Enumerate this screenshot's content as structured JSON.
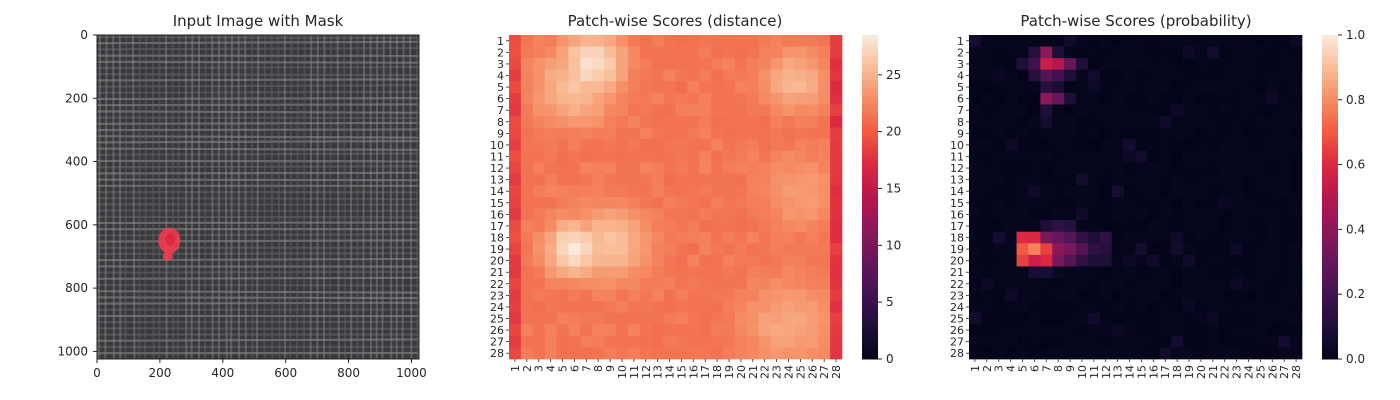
{
  "chart_data": [
    {
      "type": "image",
      "title": "Input Image with Mask",
      "xlim": [
        0,
        1024
      ],
      "ylim": [
        1024,
        0
      ],
      "xticks": [
        0,
        200,
        400,
        600,
        800,
        1000
      ],
      "yticks": [
        0,
        200,
        400,
        600,
        800,
        1000
      ],
      "texture_colors": [
        "#3e3e42",
        "#6d6d71",
        "#9a9a9e"
      ],
      "mask_color": "#ff3b4e",
      "mask_region": {
        "x_range": [
          195,
          265
        ],
        "y_range": [
          610,
          720
        ]
      }
    },
    {
      "type": "heatmap",
      "title": "Patch-wise Scores (distance)",
      "rows": 28,
      "cols": 28,
      "row_labels": [
        "1",
        "2",
        "3",
        "4",
        "5",
        "6",
        "7",
        "8",
        "9",
        "10",
        "11",
        "12",
        "13",
        "14",
        "15",
        "16",
        "17",
        "18",
        "19",
        "20",
        "21",
        "22",
        "23",
        "24",
        "25",
        "26",
        "27",
        "28"
      ],
      "col_labels": [
        "1",
        "2",
        "3",
        "4",
        "5",
        "6",
        "7",
        "8",
        "9",
        "10",
        "11",
        "12",
        "13",
        "14",
        "15",
        "16",
        "17",
        "18",
        "19",
        "20",
        "21",
        "22",
        "23",
        "24",
        "25",
        "26",
        "27",
        "28"
      ],
      "colorbar": {
        "min": 0,
        "max": 28.5,
        "ticks": [
          0,
          5,
          10,
          15,
          20,
          25
        ]
      },
      "base_value": 21,
      "hotspots": [
        {
          "row": 3,
          "col": 7.5,
          "peak": 28,
          "spread": 2.0
        },
        {
          "row": 5,
          "col": 6,
          "peak": 26,
          "spread": 2.5
        },
        {
          "row": 19,
          "col": 6,
          "peak": 28.5,
          "spread": 1.8
        },
        {
          "row": 18.5,
          "col": 9,
          "peak": 26,
          "spread": 2.5
        },
        {
          "row": 4.5,
          "col": 24.5,
          "peak": 25.5,
          "spread": 2.0
        },
        {
          "row": 25.5,
          "col": 24,
          "peak": 24.5,
          "spread": 3.0
        },
        {
          "row": 14,
          "col": 25,
          "peak": 24,
          "spread": 2.5
        }
      ],
      "cold_edges": {
        "right_col_28": 17,
        "left_col_1": 18
      }
    },
    {
      "type": "heatmap",
      "title": "Patch-wise Scores (probability)",
      "rows": 28,
      "cols": 28,
      "row_labels": [
        "1",
        "2",
        "3",
        "4",
        "5",
        "6",
        "7",
        "8",
        "9",
        "10",
        "11",
        "12",
        "13",
        "14",
        "15",
        "16",
        "17",
        "18",
        "19",
        "20",
        "21",
        "22",
        "23",
        "24",
        "25",
        "26",
        "27",
        "28"
      ],
      "col_labels": [
        "1",
        "2",
        "3",
        "4",
        "5",
        "6",
        "7",
        "8",
        "9",
        "10",
        "11",
        "12",
        "13",
        "14",
        "15",
        "16",
        "17",
        "18",
        "19",
        "20",
        "21",
        "22",
        "23",
        "24",
        "25",
        "26",
        "27",
        "28"
      ],
      "colorbar": {
        "min": 0,
        "max": 1.0,
        "ticks": [
          0.0,
          0.2,
          0.4,
          0.6,
          0.8,
          1.0
        ]
      },
      "cells": [
        {
          "row": 2,
          "col": 7,
          "value": 0.4
        },
        {
          "row": 2,
          "col": 6,
          "value": 0.12
        },
        {
          "row": 2,
          "col": 8,
          "value": 0.1
        },
        {
          "row": 3,
          "col": 6,
          "value": 0.2
        },
        {
          "row": 3,
          "col": 7,
          "value": 0.55
        },
        {
          "row": 3,
          "col": 8,
          "value": 0.5
        },
        {
          "row": 3,
          "col": 9,
          "value": 0.3
        },
        {
          "row": 3,
          "col": 5,
          "value": 0.1
        },
        {
          "row": 3,
          "col": 10,
          "value": 0.1
        },
        {
          "row": 4,
          "col": 6,
          "value": 0.12
        },
        {
          "row": 4,
          "col": 7,
          "value": 0.25
        },
        {
          "row": 4,
          "col": 8,
          "value": 0.2
        },
        {
          "row": 4,
          "col": 9,
          "value": 0.1
        },
        {
          "row": 5,
          "col": 7,
          "value": 0.12
        },
        {
          "row": 5,
          "col": 8,
          "value": 0.08
        },
        {
          "row": 6,
          "col": 7,
          "value": 0.4
        },
        {
          "row": 6,
          "col": 8,
          "value": 0.3
        },
        {
          "row": 6,
          "col": 9,
          "value": 0.1
        },
        {
          "row": 7,
          "col": 7,
          "value": 0.1
        },
        {
          "row": 17,
          "col": 7,
          "value": 0.1
        },
        {
          "row": 17,
          "col": 8,
          "value": 0.15
        },
        {
          "row": 17,
          "col": 9,
          "value": 0.12
        },
        {
          "row": 18,
          "col": 5,
          "value": 0.6
        },
        {
          "row": 18,
          "col": 6,
          "value": 0.6
        },
        {
          "row": 18,
          "col": 7,
          "value": 0.35
        },
        {
          "row": 18,
          "col": 8,
          "value": 0.3
        },
        {
          "row": 18,
          "col": 9,
          "value": 0.25
        },
        {
          "row": 18,
          "col": 10,
          "value": 0.15
        },
        {
          "row": 18,
          "col": 11,
          "value": 0.1
        },
        {
          "row": 18,
          "col": 12,
          "value": 0.15
        },
        {
          "row": 19,
          "col": 5,
          "value": 0.7
        },
        {
          "row": 19,
          "col": 6,
          "value": 0.78
        },
        {
          "row": 19,
          "col": 7,
          "value": 0.65
        },
        {
          "row": 19,
          "col": 8,
          "value": 0.4
        },
        {
          "row": 19,
          "col": 9,
          "value": 0.35
        },
        {
          "row": 19,
          "col": 10,
          "value": 0.25
        },
        {
          "row": 19,
          "col": 11,
          "value": 0.15
        },
        {
          "row": 19,
          "col": 12,
          "value": 0.12
        },
        {
          "row": 20,
          "col": 5,
          "value": 0.65
        },
        {
          "row": 20,
          "col": 6,
          "value": 0.55
        },
        {
          "row": 20,
          "col": 7,
          "value": 0.6
        },
        {
          "row": 20,
          "col": 8,
          "value": 0.35
        },
        {
          "row": 20,
          "col": 9,
          "value": 0.25
        },
        {
          "row": 20,
          "col": 10,
          "value": 0.15
        },
        {
          "row": 20,
          "col": 11,
          "value": 0.1
        },
        {
          "row": 20,
          "col": 12,
          "value": 0.1
        },
        {
          "row": 21,
          "col": 6,
          "value": 0.08
        },
        {
          "row": 21,
          "col": 7,
          "value": 0.08
        }
      ]
    }
  ]
}
